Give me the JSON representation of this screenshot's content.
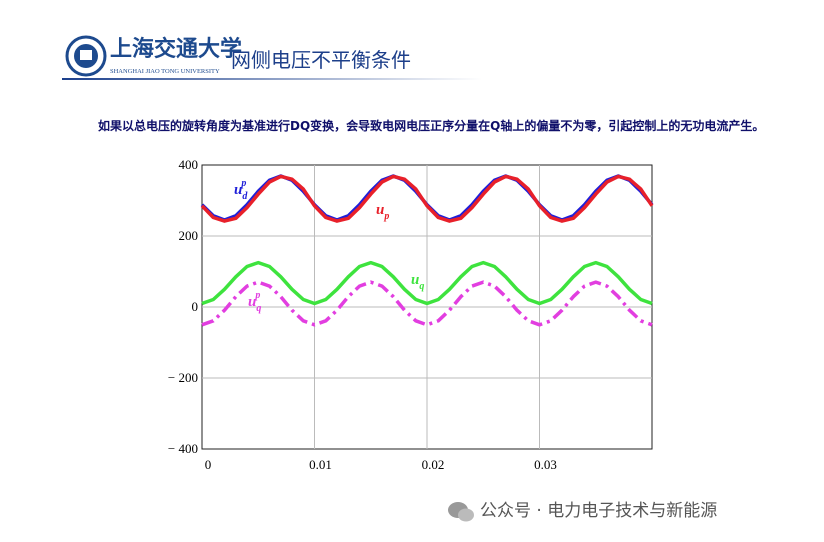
{
  "header": {
    "school_cn": "上海交通大学",
    "school_en": "SHANGHAI JIAO TONG UNIVERSITY",
    "title": "网侧电压不平衡条件"
  },
  "paragraph": "如果以总电压的旋转角度为基准进行DQ变换，会导致电网电压正序分量在Q轴上的偏量不为零，引起控制上的无功电流产生。",
  "footer": "公众号 · 电力电子技术与新能源",
  "chart_data": {
    "type": "line",
    "x": [
      0,
      0.001,
      0.002,
      0.003,
      0.004,
      0.005,
      0.006,
      0.007,
      0.008,
      0.009,
      0.01,
      0.011,
      0.012,
      0.013,
      0.014,
      0.015,
      0.016,
      0.017,
      0.018,
      0.019,
      0.02,
      0.021,
      0.022,
      0.023,
      0.024,
      0.025,
      0.026,
      0.027,
      0.028,
      0.029,
      0.03,
      0.031,
      0.032,
      0.033,
      0.034,
      0.035,
      0.036,
      0.037,
      0.038,
      0.039,
      0.04
    ],
    "series": [
      {
        "name": "u",
        "sub": "d",
        "sup": "p",
        "color": "#1f1fd8",
        "style": "solid",
        "values": [
          288,
          257,
          245,
          257,
          288,
          326,
          357,
          369,
          357,
          326,
          288,
          257,
          245,
          257,
          288,
          326,
          357,
          369,
          357,
          326,
          288,
          257,
          245,
          257,
          288,
          326,
          357,
          369,
          357,
          326,
          288,
          257,
          245,
          257,
          288,
          326,
          357,
          369,
          357,
          326,
          288
        ]
      },
      {
        "name": "u",
        "sub": "p",
        "color": "#e8202a",
        "style": "solid",
        "values": [
          285,
          252,
          242,
          250,
          280,
          318,
          352,
          368,
          360,
          332,
          285,
          252,
          242,
          250,
          280,
          318,
          352,
          368,
          360,
          332,
          285,
          252,
          242,
          250,
          280,
          318,
          352,
          368,
          360,
          332,
          285,
          252,
          242,
          250,
          280,
          318,
          352,
          368,
          360,
          332,
          285
        ]
      },
      {
        "name": "u",
        "sub": "q",
        "color": "#3ee33e",
        "style": "solid",
        "values": [
          10,
          21,
          50,
          85,
          114,
          125,
          114,
          85,
          50,
          21,
          10,
          21,
          50,
          85,
          114,
          125,
          114,
          85,
          50,
          21,
          10,
          21,
          50,
          85,
          114,
          125,
          114,
          85,
          50,
          21,
          10,
          21,
          50,
          85,
          114,
          125,
          114,
          85,
          50,
          21,
          10
        ]
      },
      {
        "name": "u",
        "sub": "q",
        "sup": "p",
        "color": "#e23ee0",
        "style": "dashdot",
        "values": [
          -50,
          -39,
          -9,
          29,
          59,
          70,
          59,
          29,
          -9,
          -39,
          -50,
          -39,
          -9,
          29,
          59,
          70,
          59,
          29,
          -9,
          -39,
          -50,
          -39,
          -9,
          29,
          59,
          70,
          59,
          29,
          -9,
          -39,
          -50,
          -39,
          -9,
          29,
          59,
          70,
          59,
          29,
          -9,
          -39,
          -50
        ]
      }
    ],
    "xlim": [
      0,
      0.04
    ],
    "xticks": [
      0,
      0.01,
      0.02,
      0.03
    ],
    "ylim": [
      -400,
      400
    ],
    "yticks": [
      400,
      200,
      0,
      {
        "value": -200,
        "label": "− 200"
      },
      {
        "value": -400,
        "label": "− 400"
      }
    ],
    "grid": true
  }
}
